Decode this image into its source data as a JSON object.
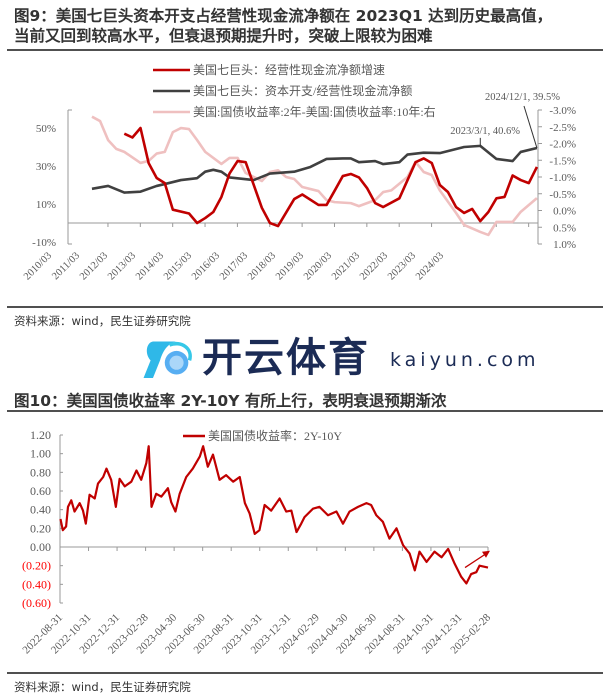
{
  "figure9": {
    "title_line1": "图9：美国七巨头资本开支占经营性现金流净额在 2023Q1 达到历史最高值，",
    "title_line2": "当前又回到较高水平，但衰退预期提升时，突破上限较为困难",
    "source": "资料来源：wind，民生证券研究院"
  },
  "figure10": {
    "title": "图10：美国国债收益率 2Y-10Y 有所上行，表明衰退预期渐浓",
    "source": "资料来源：wind，民生证券研究院"
  },
  "watermark": {
    "cn": "开云体育",
    "en": "kaiyun.com"
  },
  "chart_data": [
    {
      "type": "line",
      "legend_position": "top",
      "x_tick_labels": [
        "2010/03",
        "2011/03",
        "2012/03",
        "2013/03",
        "2014/03",
        "2015/03",
        "2016/03",
        "2017/03",
        "2018/03",
        "2019/03",
        "2020/03",
        "2021/03",
        "2022/03",
        "2023/03",
        "2024/03"
      ],
      "y_left": {
        "ticks": [
          "50%",
          "30%",
          "10%",
          "-10%"
        ],
        "range": [
          -10,
          50
        ]
      },
      "y_right": {
        "ticks": [
          "-3.0%",
          "-2.5%",
          "-2.0%",
          "-1.5%",
          "-1.0%",
          "-0.5%",
          "0.0%",
          "0.5%",
          "1.0%"
        ],
        "range": [
          -3.0,
          1.0
        ],
        "inverted": true
      },
      "annotations": [
        {
          "text": "2023/3/1, 40.6%",
          "date": "2023/03",
          "value": 40.6
        },
        {
          "text": "2024/12/1, 39.5%",
          "date": "2024/12",
          "value": 39.5
        }
      ],
      "series": [
        {
          "name": "美国七巨头：经营性现金流净额增速",
          "axis": "left",
          "color": "#c00000",
          "points": [
            [
              "2012/03",
              47
            ],
            [
              "2012/06",
              45
            ],
            [
              "2012/09",
              50
            ],
            [
              "2012/12",
              31.6
            ],
            [
              "2013/03",
              23.7
            ],
            [
              "2013/06",
              21
            ],
            [
              "2013/09",
              7
            ],
            [
              "2014/03",
              5
            ],
            [
              "2014/06",
              0
            ],
            [
              "2014/09",
              2.6
            ],
            [
              "2014/12",
              5.8
            ],
            [
              "2015/03",
              13.7
            ],
            [
              "2015/06",
              26
            ],
            [
              "2015/09",
              32.6
            ],
            [
              "2015/12",
              32
            ],
            [
              "2016/06",
              8
            ],
            [
              "2016/09",
              0
            ],
            [
              "2016/12",
              -1.6
            ],
            [
              "2017/06",
              12.6
            ],
            [
              "2017/09",
              15
            ],
            [
              "2018/03",
              9.5
            ],
            [
              "2018/06",
              9.5
            ],
            [
              "2018/09",
              17
            ],
            [
              "2018/12",
              24.7
            ],
            [
              "2019/03",
              25.8
            ],
            [
              "2019/06",
              24
            ],
            [
              "2019/09",
              18.4
            ],
            [
              "2019/12",
              10.5
            ],
            [
              "2020/03",
              8.4
            ],
            [
              "2020/09",
              13
            ],
            [
              "2021/03",
              32
            ],
            [
              "2021/06",
              34
            ],
            [
              "2021/09",
              31.6
            ],
            [
              "2021/12",
              20
            ],
            [
              "2022/03",
              16.3
            ],
            [
              "2022/06",
              8.4
            ],
            [
              "2022/09",
              5.3
            ],
            [
              "2022/12",
              7.4
            ],
            [
              "2023/03",
              1
            ],
            [
              "2023/06",
              5.8
            ],
            [
              "2023/09",
              13
            ],
            [
              "2023/12",
              13.7
            ],
            [
              "2024/03",
              25
            ],
            [
              "2024/06",
              22.6
            ],
            [
              "2024/09",
              21
            ],
            [
              "2024/12",
              29.5
            ]
          ]
        },
        {
          "name": "美国七巨头：资本开支/经营性现金流净额",
          "axis": "left",
          "color": "#404040",
          "points": [
            [
              "2011/03",
              18
            ],
            [
              "2011/09",
              19.5
            ],
            [
              "2012/03",
              16
            ],
            [
              "2012/09",
              16.5
            ],
            [
              "2013/03",
              19.5
            ],
            [
              "2013/06",
              20.5
            ],
            [
              "2013/12",
              22.6
            ],
            [
              "2014/06",
              23.6
            ],
            [
              "2014/09",
              27
            ],
            [
              "2014/12",
              28
            ],
            [
              "2015/03",
              27
            ],
            [
              "2015/06",
              24
            ],
            [
              "2016/03",
              22.6
            ],
            [
              "2016/09",
              26
            ],
            [
              "2017/06",
              27
            ],
            [
              "2017/12",
              29.5
            ],
            [
              "2018/06",
              33.7
            ],
            [
              "2018/12",
              34
            ],
            [
              "2019/03",
              34
            ],
            [
              "2019/06",
              32
            ],
            [
              "2019/12",
              32.6
            ],
            [
              "2020/03",
              31
            ],
            [
              "2020/09",
              32
            ],
            [
              "2020/12",
              36
            ],
            [
              "2021/06",
              37
            ],
            [
              "2021/12",
              36.8
            ],
            [
              "2022/09",
              40
            ],
            [
              "2023/03",
              40.6
            ],
            [
              "2023/09",
              33.7
            ],
            [
              "2024/03",
              32.6
            ],
            [
              "2024/06",
              37.4
            ],
            [
              "2024/12",
              39.5
            ]
          ]
        },
        {
          "name": "美国:国债收益率:2年-美国:国债收益率:10年:右",
          "axis": "right",
          "color": "#efc0c0",
          "points": [
            [
              "2011/03",
              -2.8
            ],
            [
              "2011/06",
              -2.67
            ],
            [
              "2011/09",
              -2.1
            ],
            [
              "2011/12",
              -1.84
            ],
            [
              "2012/03",
              -1.75
            ],
            [
              "2012/09",
              -1.42
            ],
            [
              "2012/12",
              -1.48
            ],
            [
              "2013/03",
              -1.7
            ],
            [
              "2013/06",
              -1.75
            ],
            [
              "2013/09",
              -2.34
            ],
            [
              "2013/12",
              -2.46
            ],
            [
              "2014/03",
              -2.43
            ],
            [
              "2014/06",
              -2.1
            ],
            [
              "2014/09",
              -1.75
            ],
            [
              "2015/03",
              -1.39
            ],
            [
              "2015/06",
              -1.57
            ],
            [
              "2015/09",
              -1.57
            ],
            [
              "2015/12",
              -1.12
            ],
            [
              "2016/06",
              -0.88
            ],
            [
              "2016/09",
              -1.15
            ],
            [
              "2016/12",
              -1.2
            ],
            [
              "2017/03",
              -1.0
            ],
            [
              "2017/06",
              -0.94
            ],
            [
              "2017/09",
              -0.7
            ],
            [
              "2018/03",
              -0.58
            ],
            [
              "2018/06",
              -0.31
            ],
            [
              "2018/09",
              -0.25
            ],
            [
              "2019/03",
              -0.22
            ],
            [
              "2019/06",
              -0.13
            ],
            [
              "2019/12",
              -0.31
            ],
            [
              "2020/03",
              -0.55
            ],
            [
              "2020/06",
              -0.6
            ],
            [
              "2020/12",
              -1.0
            ],
            [
              "2021/03",
              -1.45
            ],
            [
              "2021/06",
              -1.15
            ],
            [
              "2021/09",
              -1.06
            ],
            [
              "2021/12",
              -0.6
            ],
            [
              "2022/06",
              0.07
            ],
            [
              "2022/09",
              0.43
            ],
            [
              "2023/03",
              0.64
            ],
            [
              "2023/06",
              0.73
            ],
            [
              "2023/09",
              0.34
            ],
            [
              "2024/03",
              0.34
            ],
            [
              "2024/06",
              0.04
            ],
            [
              "2024/12",
              -0.37
            ]
          ]
        }
      ]
    },
    {
      "type": "line",
      "legend_position": "top",
      "x_tick_labels": [
        "2022-08-31",
        "2022-10-31",
        "2022-12-31",
        "2023-02-28",
        "2023-04-30",
        "2023-06-30",
        "2023-08-31",
        "2023-10-31",
        "2023-12-31",
        "2024-02-29",
        "2024-04-30",
        "2024-06-30",
        "2024-08-31",
        "2024-10-31",
        "2024-12-31",
        "2025-02-28"
      ],
      "y_ticks": [
        "1.20",
        "1.00",
        "0.80",
        "0.60",
        "0.40",
        "0.20",
        "0.00",
        "(0.20)",
        "(0.40)",
        "(0.60)"
      ],
      "y_range": [
        -0.6,
        1.2
      ],
      "negative_tick_color": "#ff0000",
      "trend_arrow": {
        "from": [
          "2025-01-10",
          -0.22
        ],
        "to": [
          "2025-02-28",
          -0.04
        ],
        "color": "#c00000"
      },
      "series": [
        {
          "name": "美国国债收益率：2Y-10Y",
          "color": "#c00000",
          "points": [
            [
              "2022-09-01",
              0.3
            ],
            [
              "2022-09-06",
              0.18
            ],
            [
              "2022-09-13",
              0.22
            ],
            [
              "2022-09-17",
              0.43
            ],
            [
              "2022-09-24",
              0.5
            ],
            [
              "2022-10-01",
              0.38
            ],
            [
              "2022-10-12",
              0.47
            ],
            [
              "2022-10-19",
              0.39
            ],
            [
              "2022-10-25",
              0.25
            ],
            [
              "2022-11-02",
              0.56
            ],
            [
              "2022-11-13",
              0.52
            ],
            [
              "2022-11-20",
              0.68
            ],
            [
              "2022-12-01",
              0.75
            ],
            [
              "2022-12-08",
              0.84
            ],
            [
              "2022-12-18",
              0.72
            ],
            [
              "2022-12-28",
              0.43
            ],
            [
              "2023-01-05",
              0.73
            ],
            [
              "2023-01-16",
              0.65
            ],
            [
              "2023-01-30",
              0.7
            ],
            [
              "2023-02-10",
              0.82
            ],
            [
              "2023-02-20",
              0.72
            ],
            [
              "2023-03-03",
              0.9
            ],
            [
              "2023-03-08",
              1.08
            ],
            [
              "2023-03-14",
              0.43
            ],
            [
              "2023-03-24",
              0.57
            ],
            [
              "2023-04-04",
              0.54
            ],
            [
              "2023-04-18",
              0.63
            ],
            [
              "2023-04-25",
              0.48
            ],
            [
              "2023-05-04",
              0.38
            ],
            [
              "2023-05-13",
              0.57
            ],
            [
              "2023-05-27",
              0.75
            ],
            [
              "2023-06-10",
              0.84
            ],
            [
              "2023-06-25",
              0.97
            ],
            [
              "2023-07-02",
              1.08
            ],
            [
              "2023-07-12",
              0.86
            ],
            [
              "2023-07-23",
              0.99
            ],
            [
              "2023-08-06",
              0.72
            ],
            [
              "2023-08-20",
              0.77
            ],
            [
              "2023-09-04",
              0.7
            ],
            [
              "2023-09-18",
              0.75
            ],
            [
              "2023-09-29",
              0.47
            ],
            [
              "2023-10-09",
              0.36
            ],
            [
              "2023-10-20",
              0.14
            ],
            [
              "2023-10-30",
              0.18
            ],
            [
              "2023-11-10",
              0.45
            ],
            [
              "2023-11-24",
              0.39
            ],
            [
              "2023-12-12",
              0.52
            ],
            [
              "2023-12-26",
              0.38
            ],
            [
              "2024-01-06",
              0.39
            ],
            [
              "2024-01-17",
              0.16
            ],
            [
              "2024-01-27",
              0.25
            ],
            [
              "2024-02-03",
              0.32
            ],
            [
              "2024-02-21",
              0.41
            ],
            [
              "2024-03-06",
              0.43
            ],
            [
              "2024-03-24",
              0.34
            ],
            [
              "2024-04-11",
              0.38
            ],
            [
              "2024-04-25",
              0.25
            ],
            [
              "2024-05-09",
              0.38
            ],
            [
              "2024-05-27",
              0.43
            ],
            [
              "2024-06-14",
              0.47
            ],
            [
              "2024-06-24",
              0.45
            ],
            [
              "2024-07-05",
              0.34
            ],
            [
              "2024-07-19",
              0.27
            ],
            [
              "2024-08-02",
              0.09
            ],
            [
              "2024-08-17",
              0.2
            ],
            [
              "2024-08-31",
              0.02
            ],
            [
              "2024-09-14",
              -0.07
            ],
            [
              "2024-09-25",
              -0.25
            ],
            [
              "2024-10-05",
              -0.05
            ],
            [
              "2024-10-20",
              -0.16
            ],
            [
              "2024-11-06",
              -0.05
            ],
            [
              "2024-11-21",
              -0.11
            ],
            [
              "2024-12-05",
              -0.02
            ],
            [
              "2024-12-19",
              -0.18
            ],
            [
              "2025-01-02",
              -0.32
            ],
            [
              "2025-01-13",
              -0.39
            ],
            [
              "2025-01-23",
              -0.29
            ],
            [
              "2025-02-03",
              -0.27
            ],
            [
              "2025-02-10",
              -0.2
            ],
            [
              "2025-02-28",
              -0.22
            ]
          ]
        }
      ]
    }
  ]
}
